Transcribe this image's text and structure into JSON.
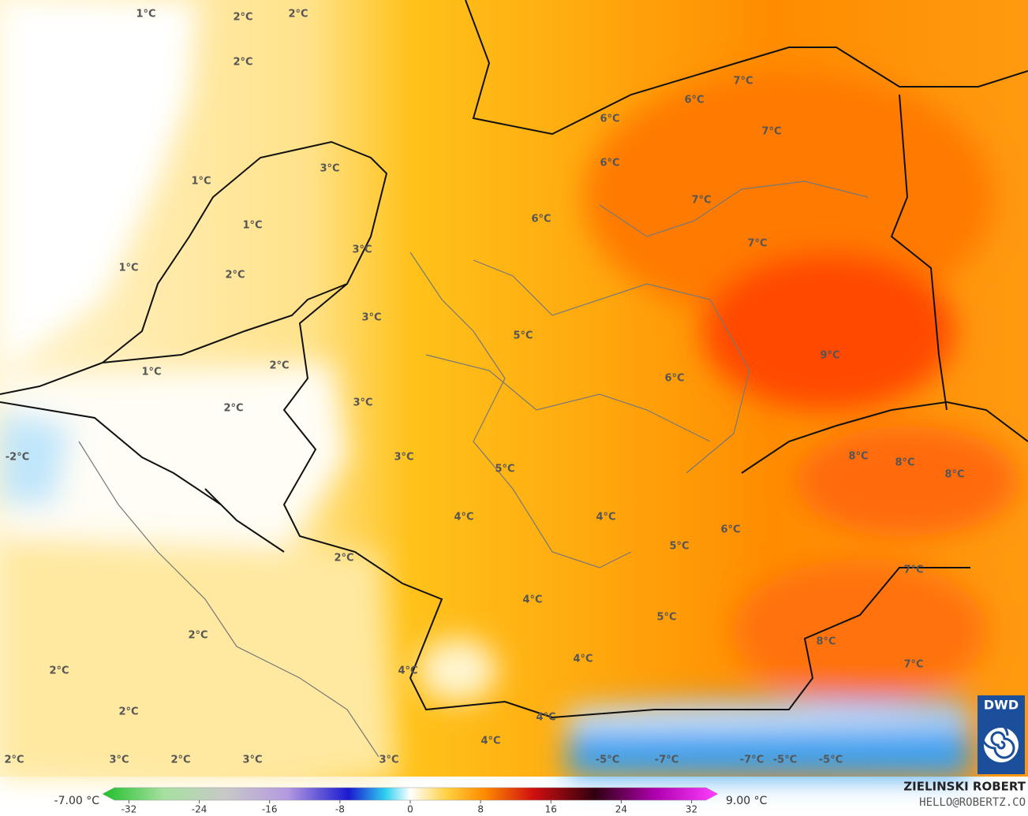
{
  "map": {
    "labels": [
      "1°C",
      "2°C",
      "2°C",
      "2°C",
      "7°C",
      "6°C",
      "6°C",
      "7°C",
      "6°C",
      "1°C",
      "3°C",
      "7°C",
      "6°C",
      "1°C",
      "3°C",
      "7°C",
      "1°C",
      "2°C",
      "3°C",
      "5°C",
      "9°C",
      "1°C",
      "2°C",
      "6°C",
      "3°C",
      "2°C",
      "-2°C",
      "3°C",
      "8°C",
      "8°C",
      "8°C",
      "5°C",
      "4°C",
      "4°C",
      "6°C",
      "5°C",
      "2°C",
      "7°C",
      "4°C",
      "5°C",
      "2°C",
      "8°C",
      "4°C",
      "7°C",
      "2°C",
      "4°C",
      "2°C",
      "4°C",
      "4°C",
      "2°C",
      "3°C",
      "2°C",
      "3°C",
      "3°C",
      "-5°C",
      "-7°C",
      "-7°C",
      "-5°C",
      "-5°C"
    ]
  },
  "colorbar": {
    "min_label": "-7.00 °C",
    "max_label": "9.00 °C",
    "lim": [
      -35,
      35
    ],
    "ticks": [
      -32,
      -24,
      -16,
      -8,
      0,
      8,
      16,
      24,
      32
    ]
  },
  "credit": {
    "name": "ZIELINSKI ROBERT",
    "email": "HELLO@ROBERTZ.CO"
  },
  "logo": "DWD"
}
